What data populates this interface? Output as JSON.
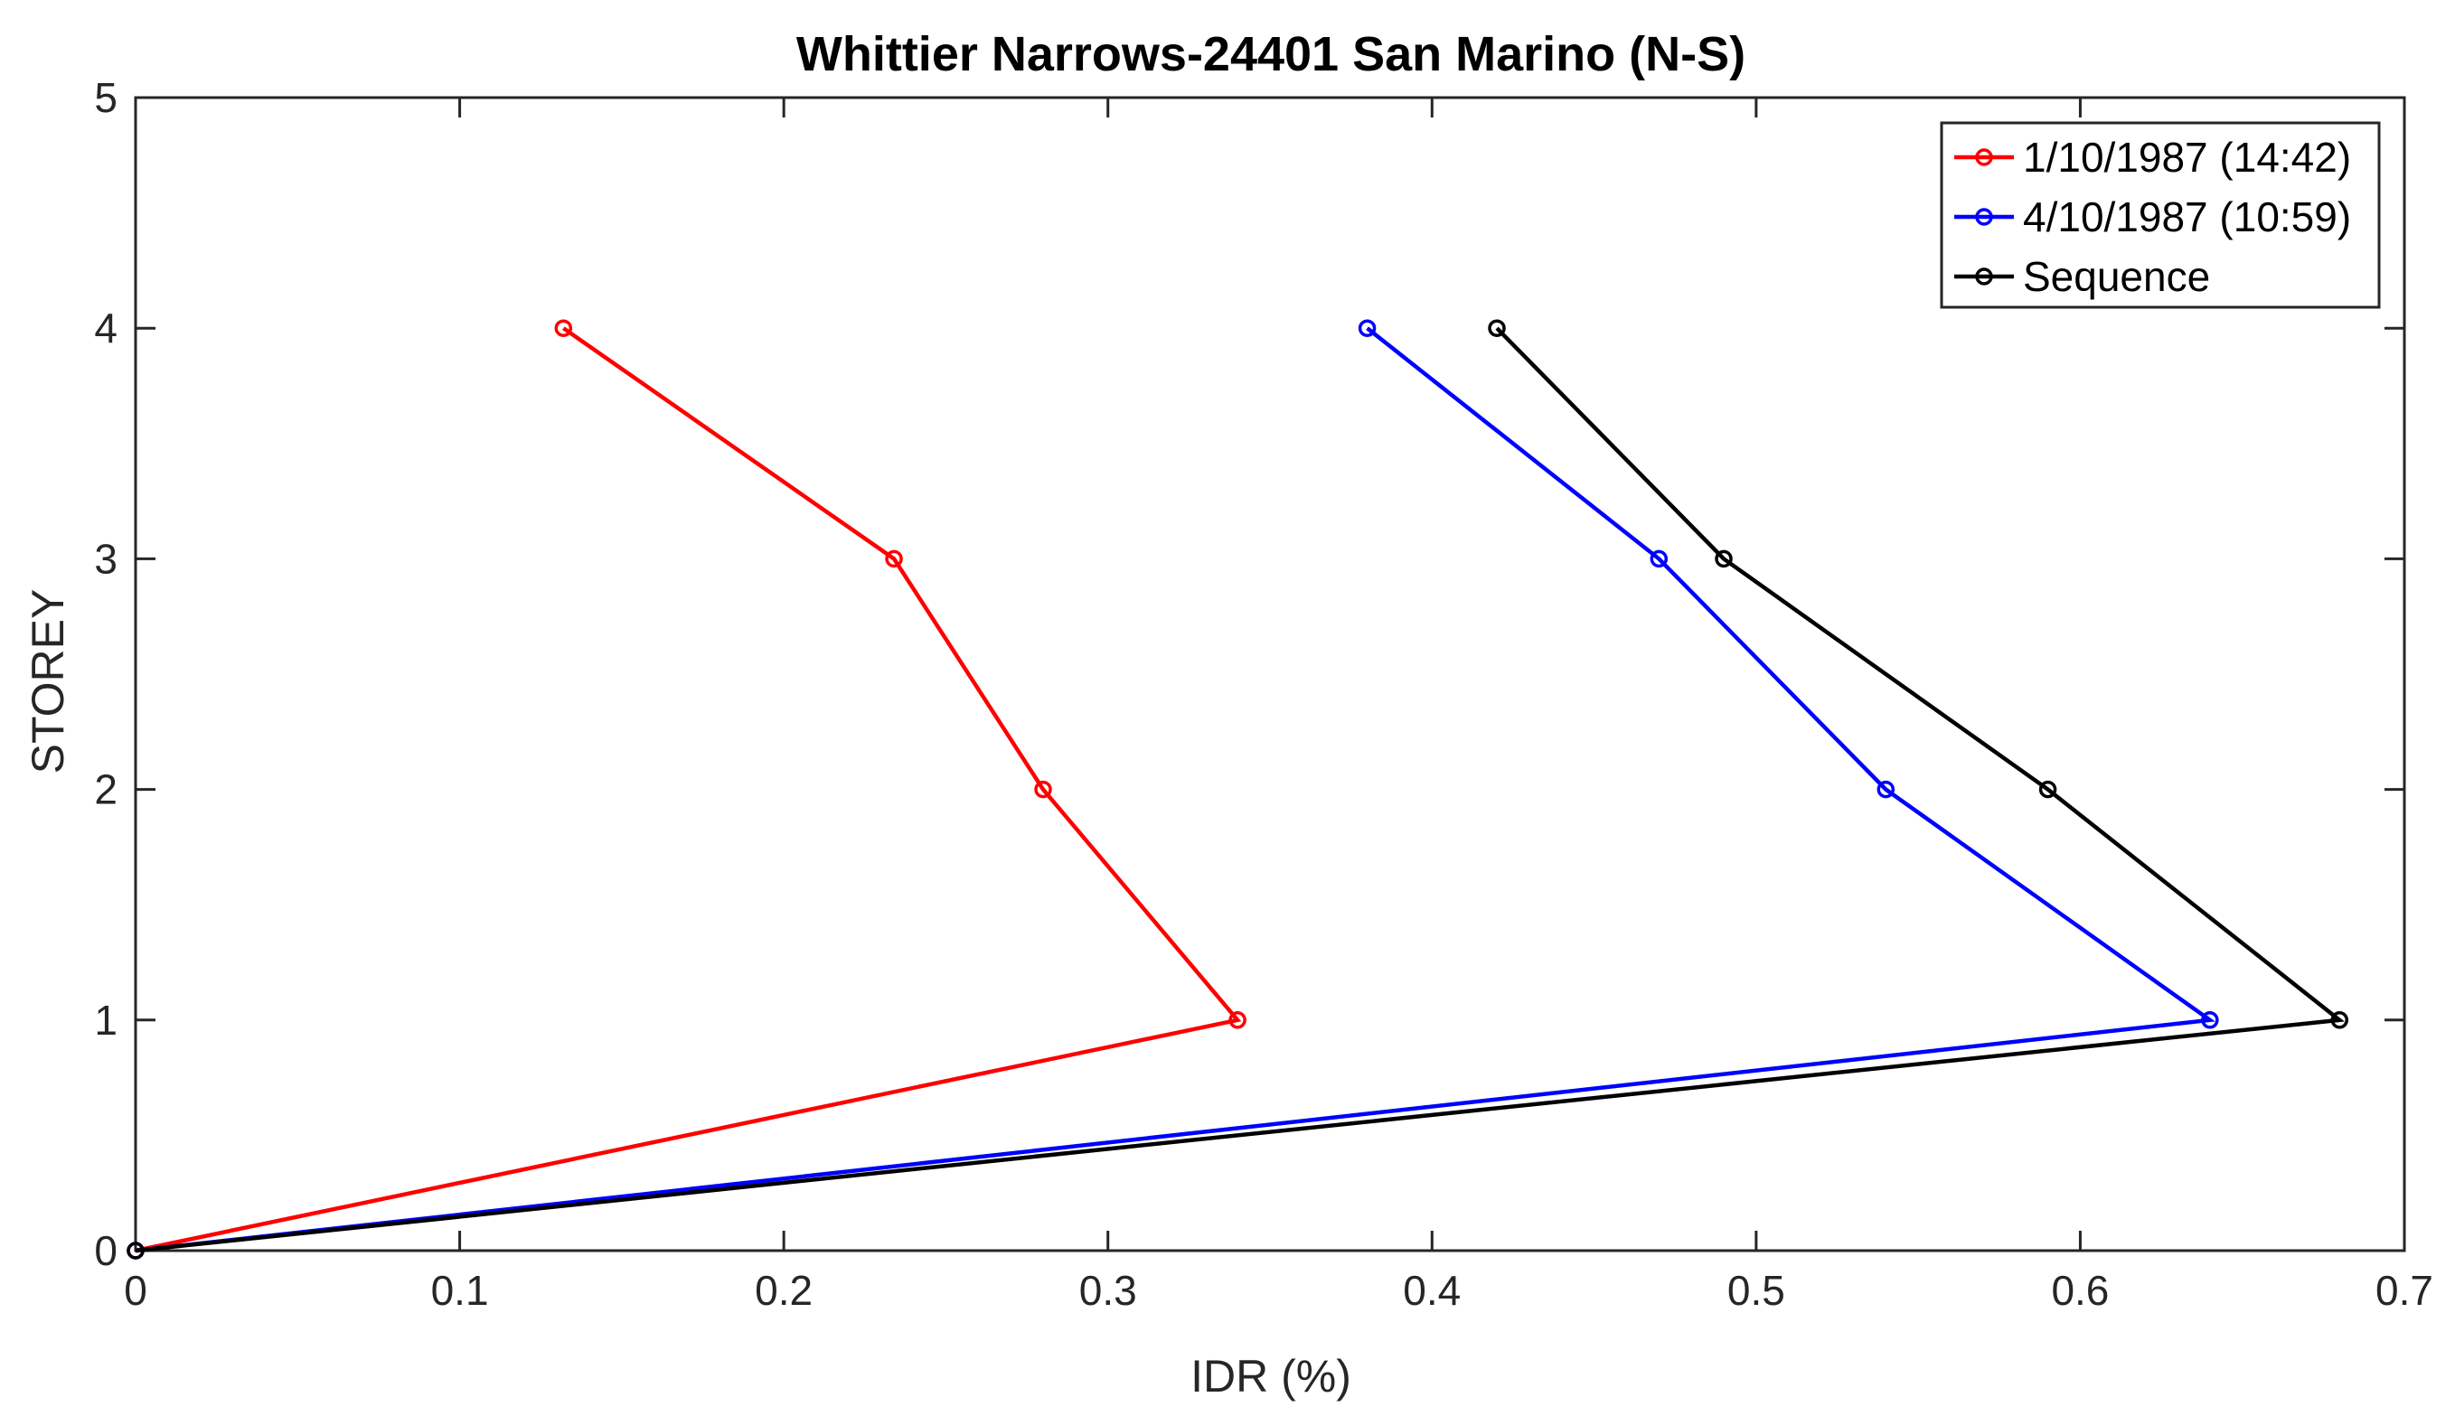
{
  "chart_data": {
    "type": "line",
    "title": "Whittier Narrows-24401 San Marino (N-S)",
    "xlabel": "IDR (%)",
    "ylabel": "STOREY",
    "xlim": [
      0,
      0.7
    ],
    "ylim": [
      0,
      5
    ],
    "xticks": [
      "0",
      "0.1",
      "0.2",
      "0.3",
      "0.4",
      "0.5",
      "0.6",
      "0.7"
    ],
    "yticks": [
      "0",
      "1",
      "2",
      "3",
      "4",
      "5"
    ],
    "grid": false,
    "legend_position": "top-right",
    "marker": "circle",
    "series": [
      {
        "name": "1/10/1987 (14:42)",
        "color": "#ff0000",
        "points": [
          [
            0,
            0
          ],
          [
            0.34,
            1
          ],
          [
            0.28,
            2
          ],
          [
            0.234,
            3
          ],
          [
            0.132,
            4
          ]
        ]
      },
      {
        "name": "4/10/1987 (10:59)",
        "color": "#0000ff",
        "points": [
          [
            0,
            0
          ],
          [
            0.64,
            1
          ],
          [
            0.54,
            2
          ],
          [
            0.47,
            3
          ],
          [
            0.38,
            4
          ]
        ]
      },
      {
        "name": "Sequence",
        "color": "#000000",
        "points": [
          [
            0,
            0
          ],
          [
            0.68,
            1
          ],
          [
            0.59,
            2
          ],
          [
            0.49,
            3
          ],
          [
            0.42,
            4
          ]
        ]
      }
    ]
  }
}
